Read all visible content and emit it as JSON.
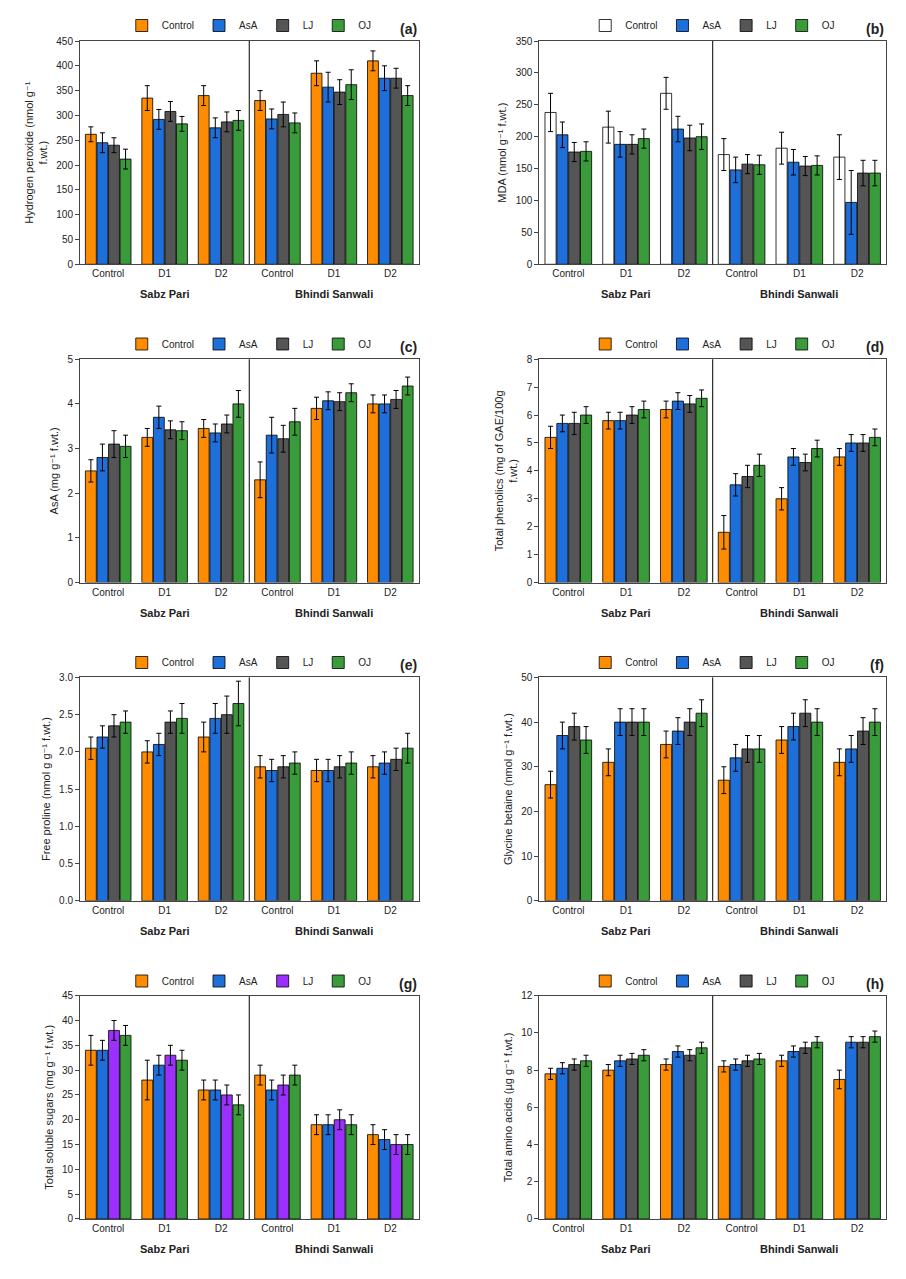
{
  "chart_data": [
    {
      "type": "bar",
      "title": "(a)",
      "ylabel": "Hydrogen peroxide (nmol g⁻¹\nf.wt.)",
      "categories": [
        "Control",
        "D1",
        "D2",
        "Control",
        "D1",
        "D2"
      ],
      "annotations": [
        "Sabz Pari",
        "Bhindi Sanwali"
      ],
      "ylim": [
        0,
        450
      ],
      "yticks": [
        0,
        50,
        100,
        150,
        200,
        250,
        300,
        350,
        400,
        450
      ],
      "grid": false,
      "legend": "upper center",
      "series": [
        {
          "name": "Control",
          "color": "#FF8C00",
          "values": [
            262,
            335,
            340,
            330,
            385,
            410
          ],
          "errors": [
            15,
            25,
            20,
            20,
            25,
            20
          ]
        },
        {
          "name": "AsA",
          "color": "#1E6FD9",
          "values": [
            245,
            292,
            275,
            293,
            357,
            375
          ],
          "errors": [
            20,
            20,
            20,
            20,
            30,
            25
          ]
        },
        {
          "name": "LJ",
          "color": "#555555",
          "values": [
            240,
            308,
            287,
            302,
            347,
            375
          ],
          "errors": [
            15,
            20,
            20,
            25,
            25,
            20
          ]
        },
        {
          "name": "OJ",
          "color": "#3A9B3A",
          "values": [
            212,
            283,
            290,
            285,
            362,
            340
          ],
          "errors": [
            20,
            15,
            20,
            20,
            30,
            20
          ]
        }
      ]
    },
    {
      "type": "bar",
      "title": "(b)",
      "ylabel": "MDA (nmol g⁻¹ f.wt.)",
      "categories": [
        "Control",
        "D1",
        "D2",
        "Control",
        "D1",
        "D2"
      ],
      "annotations": [
        "Sabz Pari",
        "Bhindi Sanwali"
      ],
      "ylim": [
        0,
        350
      ],
      "yticks": [
        0,
        50,
        100,
        150,
        200,
        250,
        300,
        350
      ],
      "grid": false,
      "legend": "upper center",
      "series": [
        {
          "name": "Control",
          "color": "#FFFFFF",
          "values": [
            238,
            215,
            268,
            172,
            182,
            168
          ],
          "errors": [
            30,
            25,
            25,
            25,
            25,
            35
          ]
        },
        {
          "name": "AsA",
          "color": "#1E6FD9",
          "values": [
            203,
            188,
            212,
            148,
            160,
            97
          ],
          "errors": [
            20,
            20,
            20,
            20,
            20,
            50
          ]
        },
        {
          "name": "LJ",
          "color": "#555555",
          "values": [
            176,
            188,
            198,
            157,
            154,
            143
          ],
          "errors": [
            15,
            15,
            20,
            15,
            15,
            20
          ]
        },
        {
          "name": "OJ",
          "color": "#3A9B3A",
          "values": [
            177,
            197,
            200,
            156,
            155,
            143
          ],
          "errors": [
            15,
            15,
            20,
            15,
            15,
            20
          ]
        }
      ]
    },
    {
      "type": "bar",
      "title": "(c)",
      "ylabel": "AsA (mg g⁻¹ f.wt.)",
      "categories": [
        "Control",
        "D1",
        "D2",
        "Control",
        "D1",
        "D2"
      ],
      "annotations": [
        "Sabz Pari",
        "Bhindi Sanwali"
      ],
      "ylim": [
        0,
        5
      ],
      "yticks": [
        0,
        1,
        2,
        3,
        4,
        5
      ],
      "grid": false,
      "legend": "upper center",
      "series": [
        {
          "name": "Control",
          "color": "#FF8C00",
          "values": [
            2.5,
            3.25,
            3.45,
            2.3,
            3.9,
            4.0
          ],
          "errors": [
            0.25,
            0.2,
            0.2,
            0.4,
            0.25,
            0.2
          ]
        },
        {
          "name": "AsA",
          "color": "#1E6FD9",
          "values": [
            2.8,
            3.7,
            3.35,
            3.3,
            4.07,
            4.0
          ],
          "errors": [
            0.3,
            0.25,
            0.2,
            0.4,
            0.2,
            0.2
          ]
        },
        {
          "name": "LJ",
          "color": "#555555",
          "values": [
            3.1,
            3.42,
            3.55,
            3.22,
            4.05,
            4.1
          ],
          "errors": [
            0.3,
            0.2,
            0.2,
            0.3,
            0.2,
            0.2
          ]
        },
        {
          "name": "OJ",
          "color": "#3A9B3A",
          "values": [
            3.05,
            3.4,
            4.0,
            3.6,
            4.25,
            4.4
          ],
          "errors": [
            0.25,
            0.2,
            0.3,
            0.3,
            0.2,
            0.2
          ]
        }
      ]
    },
    {
      "type": "bar",
      "title": "(d)",
      "ylabel": "Total phenolics (mg of GAE/100g\nf.wt.)",
      "categories": [
        "Control",
        "D1",
        "D2",
        "Control",
        "D1",
        "D2"
      ],
      "annotations": [
        "Sabz Pari",
        "Bhindi Sanwali"
      ],
      "ylim": [
        0,
        8
      ],
      "yticks": [
        0,
        1,
        2,
        3,
        4,
        5,
        6,
        7,
        8
      ],
      "grid": false,
      "legend": "upper center",
      "series": [
        {
          "name": "Control",
          "color": "#FF8C00",
          "values": [
            5.2,
            5.8,
            6.2,
            1.8,
            3.0,
            4.5
          ],
          "errors": [
            0.4,
            0.3,
            0.3,
            0.6,
            0.4,
            0.3
          ]
        },
        {
          "name": "AsA",
          "color": "#1E6FD9",
          "values": [
            5.7,
            5.8,
            6.5,
            3.5,
            4.5,
            5.0
          ],
          "errors": [
            0.3,
            0.3,
            0.3,
            0.4,
            0.3,
            0.3
          ]
        },
        {
          "name": "LJ",
          "color": "#555555",
          "values": [
            5.7,
            6.0,
            6.4,
            3.8,
            4.3,
            5.0
          ],
          "errors": [
            0.4,
            0.3,
            0.3,
            0.4,
            0.3,
            0.3
          ]
        },
        {
          "name": "OJ",
          "color": "#3A9B3A",
          "values": [
            6.0,
            6.2,
            6.6,
            4.2,
            4.8,
            5.2
          ],
          "errors": [
            0.3,
            0.3,
            0.3,
            0.4,
            0.3,
            0.3
          ]
        }
      ]
    },
    {
      "type": "bar",
      "title": "(e)",
      "ylabel": "Free proline (nmol g g⁻¹ f.wt.)",
      "categories": [
        "Control",
        "D1",
        "D2",
        "Control",
        "D1",
        "D2"
      ],
      "annotations": [
        "Sabz Pari",
        "Bhindi Sanwali"
      ],
      "ylim": [
        0,
        3
      ],
      "yticks": [
        {
          "value": 0,
          "label": "0.0"
        },
        0.5,
        {
          "value": 1.0,
          "label": "1.0"
        },
        1.5,
        {
          "value": 2.0,
          "label": "2.0"
        },
        2.5,
        {
          "value": 3.0,
          "label": "3.0"
        }
      ],
      "grid": false,
      "legend": "upper center",
      "series": [
        {
          "name": "Control",
          "color": "#FF8C00",
          "values": [
            2.05,
            2.0,
            2.2,
            1.8,
            1.75,
            1.8
          ],
          "errors": [
            0.15,
            0.15,
            0.2,
            0.15,
            0.15,
            0.15
          ]
        },
        {
          "name": "AsA",
          "color": "#1E6FD9",
          "values": [
            2.2,
            2.1,
            2.45,
            1.75,
            1.75,
            1.85
          ],
          "errors": [
            0.15,
            0.15,
            0.2,
            0.15,
            0.15,
            0.15
          ]
        },
        {
          "name": "LJ",
          "color": "#555555",
          "values": [
            2.35,
            2.4,
            2.5,
            1.8,
            1.8,
            1.9
          ],
          "errors": [
            0.15,
            0.15,
            0.25,
            0.15,
            0.15,
            0.15
          ]
        },
        {
          "name": "OJ",
          "color": "#3A9B3A",
          "values": [
            2.4,
            2.45,
            2.65,
            1.85,
            1.85,
            2.05
          ],
          "errors": [
            0.15,
            0.2,
            0.3,
            0.15,
            0.15,
            0.2
          ]
        }
      ]
    },
    {
      "type": "bar",
      "title": "(f)",
      "ylabel": "Glycine betaine (nmol g⁻¹ f.wt.)",
      "categories": [
        "Control",
        "D1",
        "D2",
        "Control",
        "D1",
        "D2"
      ],
      "annotations": [
        "Sabz Pari",
        "Bhindi Sanwali"
      ],
      "ylim": [
        0,
        50
      ],
      "yticks": [
        0,
        10,
        20,
        30,
        40,
        50
      ],
      "grid": false,
      "legend": "upper center",
      "series": [
        {
          "name": "Control",
          "color": "#FF8C00",
          "values": [
            26,
            31,
            35,
            27,
            36,
            31
          ],
          "errors": [
            3,
            3,
            3,
            3,
            3,
            3
          ]
        },
        {
          "name": "AsA",
          "color": "#1E6FD9",
          "values": [
            37,
            40,
            38,
            32,
            39,
            34
          ],
          "errors": [
            3,
            3,
            3,
            3,
            3,
            3
          ]
        },
        {
          "name": "LJ",
          "color": "#555555",
          "values": [
            39,
            40,
            40,
            34,
            42,
            38
          ],
          "errors": [
            3,
            3,
            3,
            3,
            3,
            3
          ]
        },
        {
          "name": "OJ",
          "color": "#3A9B3A",
          "values": [
            36,
            40,
            42,
            34,
            40,
            40
          ],
          "errors": [
            3,
            3,
            3,
            3,
            3,
            3
          ]
        }
      ]
    },
    {
      "type": "bar",
      "title": "(g)",
      "ylabel": "Total soluble sugars (mg g⁻¹ f.wt.)",
      "categories": [
        "Control",
        "D1",
        "D2",
        "Control",
        "D1",
        "D2"
      ],
      "annotations": [
        "Sabz Pari",
        "Bhindi Sanwali"
      ],
      "ylim": [
        0,
        45
      ],
      "yticks": [
        0,
        5,
        10,
        15,
        20,
        25,
        30,
        35,
        40,
        45
      ],
      "grid": false,
      "legend": "upper center",
      "series": [
        {
          "name": "Control",
          "color": "#FF8C00",
          "values": [
            34,
            28,
            26,
            29,
            19,
            17
          ],
          "errors": [
            3,
            4,
            2,
            2,
            2,
            2
          ]
        },
        {
          "name": "AsA",
          "color": "#1E6FD9",
          "values": [
            34,
            31,
            26,
            26,
            19,
            16
          ],
          "errors": [
            2,
            2,
            2,
            2,
            2,
            2
          ]
        },
        {
          "name": "LJ",
          "color": "#9B30FF",
          "values": [
            38,
            33,
            25,
            27,
            20,
            15
          ],
          "errors": [
            2,
            2,
            2,
            2,
            2,
            2
          ]
        },
        {
          "name": "OJ",
          "color": "#3A9B3A",
          "values": [
            37,
            32,
            23,
            29,
            19,
            15
          ],
          "errors": [
            2,
            2,
            2,
            2,
            2,
            2
          ]
        }
      ]
    },
    {
      "type": "bar",
      "title": "(h)",
      "ylabel": "Total amino acids (µg g⁻¹ f.wt.)",
      "categories": [
        "Control",
        "D1",
        "D2",
        "Control",
        "D1",
        "D2"
      ],
      "annotations": [
        "Sabz Pari",
        "Bhindi Sanwali"
      ],
      "ylim": [
        0,
        12
      ],
      "yticks": [
        0,
        2,
        4,
        6,
        8,
        10,
        12
      ],
      "grid": false,
      "legend": "upper center",
      "series": [
        {
          "name": "Control",
          "color": "#FF8C00",
          "values": [
            7.8,
            8.0,
            8.3,
            8.2,
            8.5,
            7.5
          ],
          "errors": [
            0.3,
            0.3,
            0.3,
            0.3,
            0.3,
            0.5
          ]
        },
        {
          "name": "AsA",
          "color": "#1E6FD9",
          "values": [
            8.1,
            8.5,
            9.0,
            8.3,
            9.0,
            9.5
          ],
          "errors": [
            0.3,
            0.3,
            0.3,
            0.3,
            0.3,
            0.3
          ]
        },
        {
          "name": "LJ",
          "color": "#555555",
          "values": [
            8.3,
            8.6,
            8.8,
            8.5,
            9.2,
            9.5
          ],
          "errors": [
            0.3,
            0.3,
            0.3,
            0.3,
            0.3,
            0.3
          ]
        },
        {
          "name": "OJ",
          "color": "#3A9B3A",
          "values": [
            8.5,
            8.8,
            9.2,
            8.6,
            9.5,
            9.8
          ],
          "errors": [
            0.3,
            0.3,
            0.3,
            0.3,
            0.3,
            0.3
          ]
        }
      ]
    }
  ]
}
